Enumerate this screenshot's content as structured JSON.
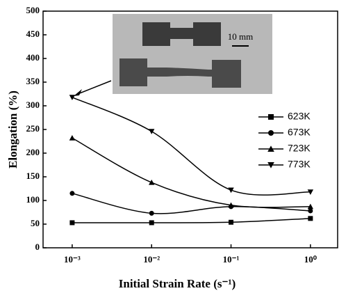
{
  "chart_data": {
    "type": "line",
    "log_x": true,
    "x_label": "Initial Strain Rate (s⁻¹)",
    "y_label": "Elongation  (%)",
    "inset_label": "10 mm",
    "x": [
      0.001,
      0.01,
      0.1,
      1
    ],
    "series": [
      {
        "name": "623K",
        "marker": "square",
        "color": "#000000",
        "values": [
          53,
          53,
          54,
          62
        ]
      },
      {
        "name": "673K",
        "marker": "circle",
        "color": "#000000",
        "values": [
          115,
          73,
          87,
          78
        ]
      },
      {
        "name": "723K",
        "marker": "triangle-up",
        "color": "#000000",
        "values": [
          232,
          138,
          90,
          87
        ]
      },
      {
        "name": "773K",
        "marker": "triangle-down",
        "color": "#000000",
        "values": [
          318,
          246,
          122,
          118
        ]
      }
    ],
    "xlim": [
      0.00043,
      2.2
    ],
    "xticks": [
      {
        "value": 0.001,
        "label": "10⁻³"
      },
      {
        "value": 0.01,
        "label": "10⁻²"
      },
      {
        "value": 0.1,
        "label": "10⁻¹"
      },
      {
        "value": 1,
        "label": "10⁰"
      }
    ],
    "ylim": [
      0,
      500
    ],
    "yticks": [
      0,
      50,
      100,
      150,
      200,
      250,
      300,
      350,
      400,
      450,
      500
    ],
    "legend": "right"
  }
}
